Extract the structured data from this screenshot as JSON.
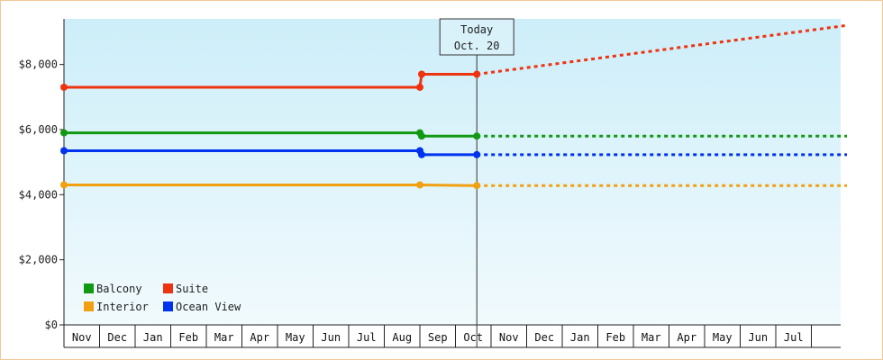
{
  "chart_data": {
    "type": "line",
    "title": "",
    "xlabel": "",
    "ylabel": "",
    "today": {
      "title": "Today",
      "date": "Oct. 20"
    },
    "y_ticks": [
      {
        "value": 0,
        "label": "$0"
      },
      {
        "value": 2000,
        "label": "$2,000"
      },
      {
        "value": 4000,
        "label": "$4,000"
      },
      {
        "value": 6000,
        "label": "$6,000"
      },
      {
        "value": 8000,
        "label": "$8,000"
      }
    ],
    "ylim": [
      0,
      9400
    ],
    "months": [
      "Nov",
      "Dec",
      "Jan",
      "Feb",
      "Mar",
      "Apr",
      "May",
      "Jun",
      "Jul",
      "Aug",
      "Sep",
      "Oct",
      "Nov",
      "Dec",
      "Jan",
      "Feb",
      "Mar",
      "Apr",
      "May",
      "Jun",
      "Jul"
    ],
    "legend_position": "bottom-left",
    "series": [
      {
        "name": "Balcony",
        "color": "#119911",
        "observed": [
          [
            0,
            5900
          ],
          [
            10.0,
            5900
          ],
          [
            10.05,
            5800
          ],
          [
            11.6,
            5800
          ]
        ],
        "projected": [
          [
            11.6,
            5800
          ],
          [
            22.0,
            5800
          ]
        ]
      },
      {
        "name": "Suite",
        "color": "#ee3311",
        "observed": [
          [
            0,
            7300
          ],
          [
            10.0,
            7300
          ],
          [
            10.05,
            7700
          ],
          [
            11.6,
            7700
          ]
        ],
        "projected": [
          [
            11.6,
            7700
          ],
          [
            22.0,
            9200
          ]
        ]
      },
      {
        "name": "Interior",
        "color": "#f0a010",
        "observed": [
          [
            0,
            4300
          ],
          [
            10.0,
            4300
          ],
          [
            11.6,
            4280
          ]
        ],
        "projected": [
          [
            11.6,
            4280
          ],
          [
            22.0,
            4280
          ]
        ]
      },
      {
        "name": "Ocean View",
        "color": "#0033ee",
        "observed": [
          [
            0,
            5350
          ],
          [
            10.0,
            5350
          ],
          [
            10.05,
            5230
          ],
          [
            11.6,
            5230
          ]
        ],
        "projected": [
          [
            11.6,
            5230
          ],
          [
            22.0,
            5230
          ]
        ]
      }
    ]
  }
}
